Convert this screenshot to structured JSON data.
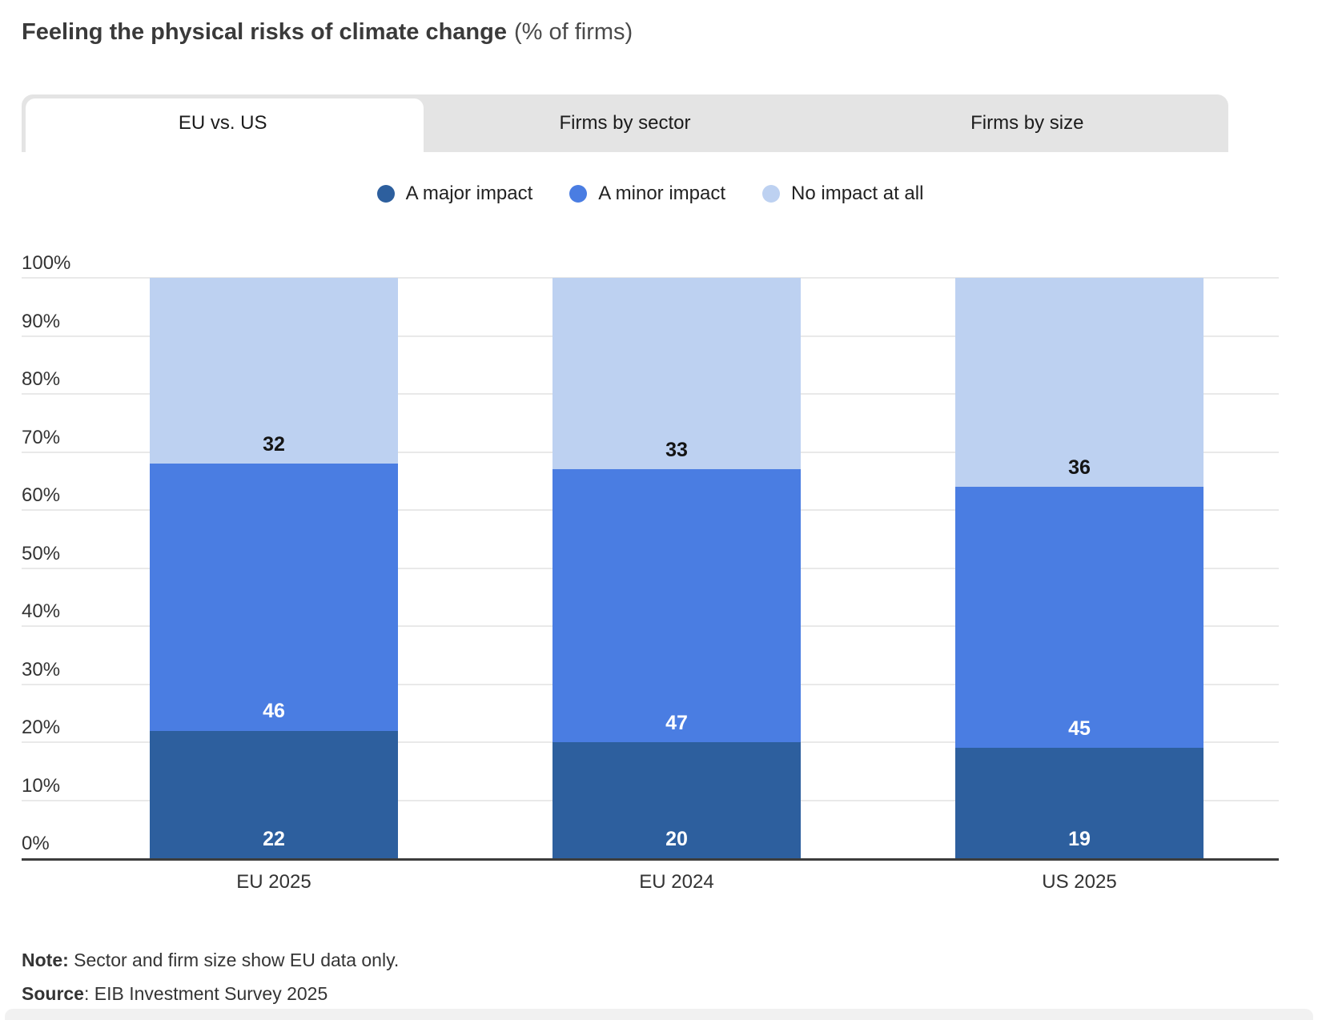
{
  "title": {
    "main": "Feeling the physical risks of climate change",
    "suffix": "(% of firms)"
  },
  "tabs": [
    {
      "label": "EU vs. US",
      "active": true
    },
    {
      "label": "Firms by sector",
      "active": false
    },
    {
      "label": "Firms by size",
      "active": false
    }
  ],
  "chart_data": {
    "type": "bar",
    "stacked": true,
    "title": "Feeling the physical risks of climate change (% of firms)",
    "categories": [
      "EU 2025",
      "EU 2024",
      "US 2025"
    ],
    "series": [
      {
        "name": "A major impact",
        "color": "#2d5f9e",
        "label_color": "#ffffff",
        "values": [
          22,
          20,
          19
        ]
      },
      {
        "name": "A minor impact",
        "color": "#4a7de2",
        "label_color": "#ffffff",
        "values": [
          46,
          47,
          45
        ]
      },
      {
        "name": "No impact at all",
        "color": "#bdd1f1",
        "label_color": "#141414",
        "values": [
          32,
          33,
          36
        ]
      }
    ],
    "xlabel": "",
    "ylabel": "",
    "ylim": [
      0,
      100
    ],
    "ytick_step": 10,
    "ytick_suffix": "%",
    "grid": true,
    "legend_position": "top",
    "axis_color": "#3d3d3d",
    "grid_color": "#e9e9e9"
  },
  "note": {
    "bold": "Note:",
    "text": " Sector and firm size show EU data only."
  },
  "source": {
    "bold": "Source",
    "text": ": EIB Investment Survey 2025"
  }
}
